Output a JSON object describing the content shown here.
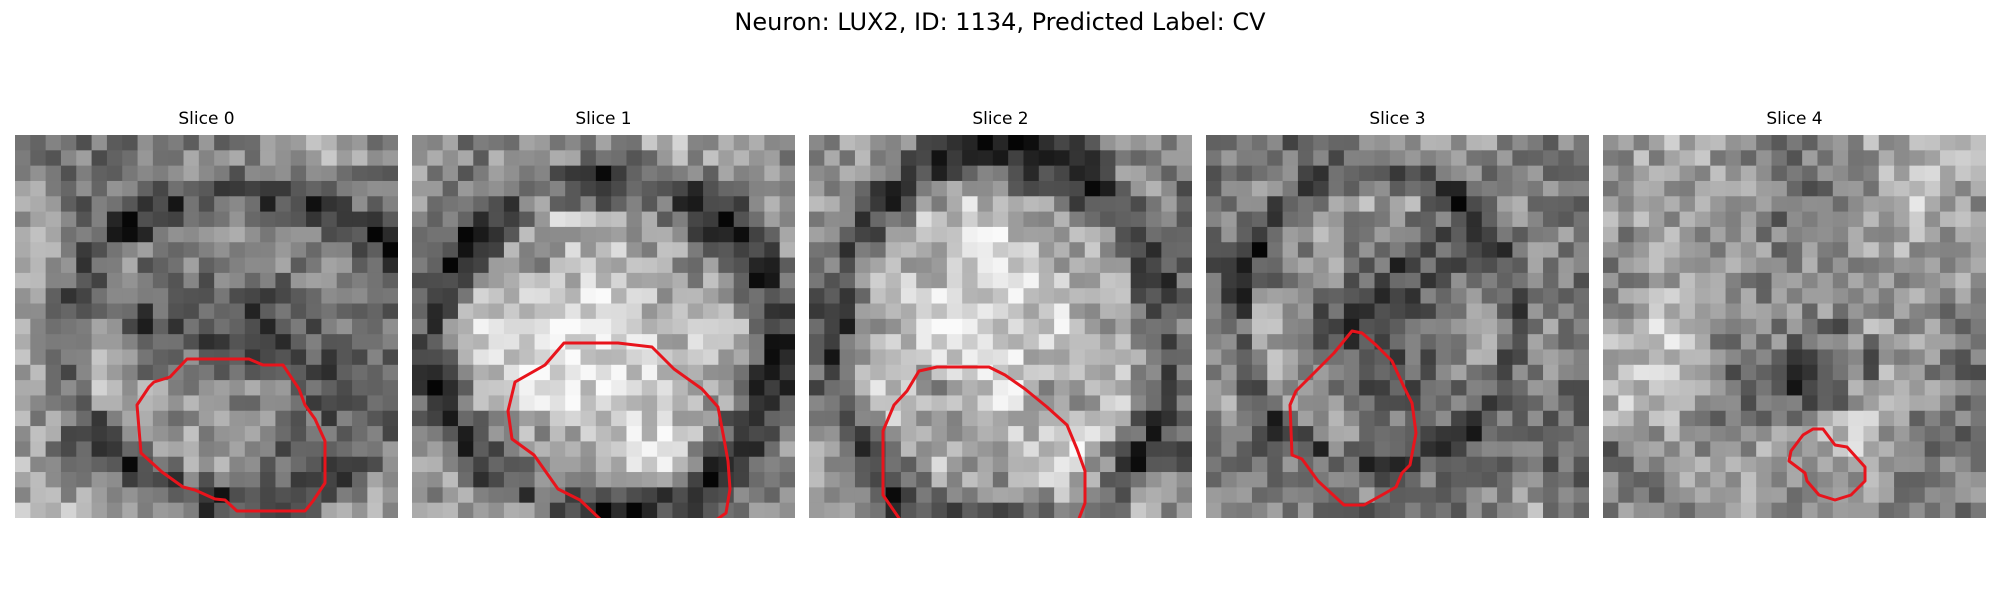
{
  "figure": {
    "title": "Neuron: LUX2, ID: 1134, Predicted Label: CV"
  },
  "panels": [
    {
      "title": "Slice 0",
      "contour_color": "#e8141c"
    },
    {
      "title": "Slice 1",
      "contour_color": "#e8141c"
    },
    {
      "title": "Slice 2",
      "contour_color": "#e8141c"
    },
    {
      "title": "Slice 3",
      "contour_color": "#e8141c"
    },
    {
      "title": "Slice 4",
      "contour_color": "#e8141c"
    }
  ]
}
